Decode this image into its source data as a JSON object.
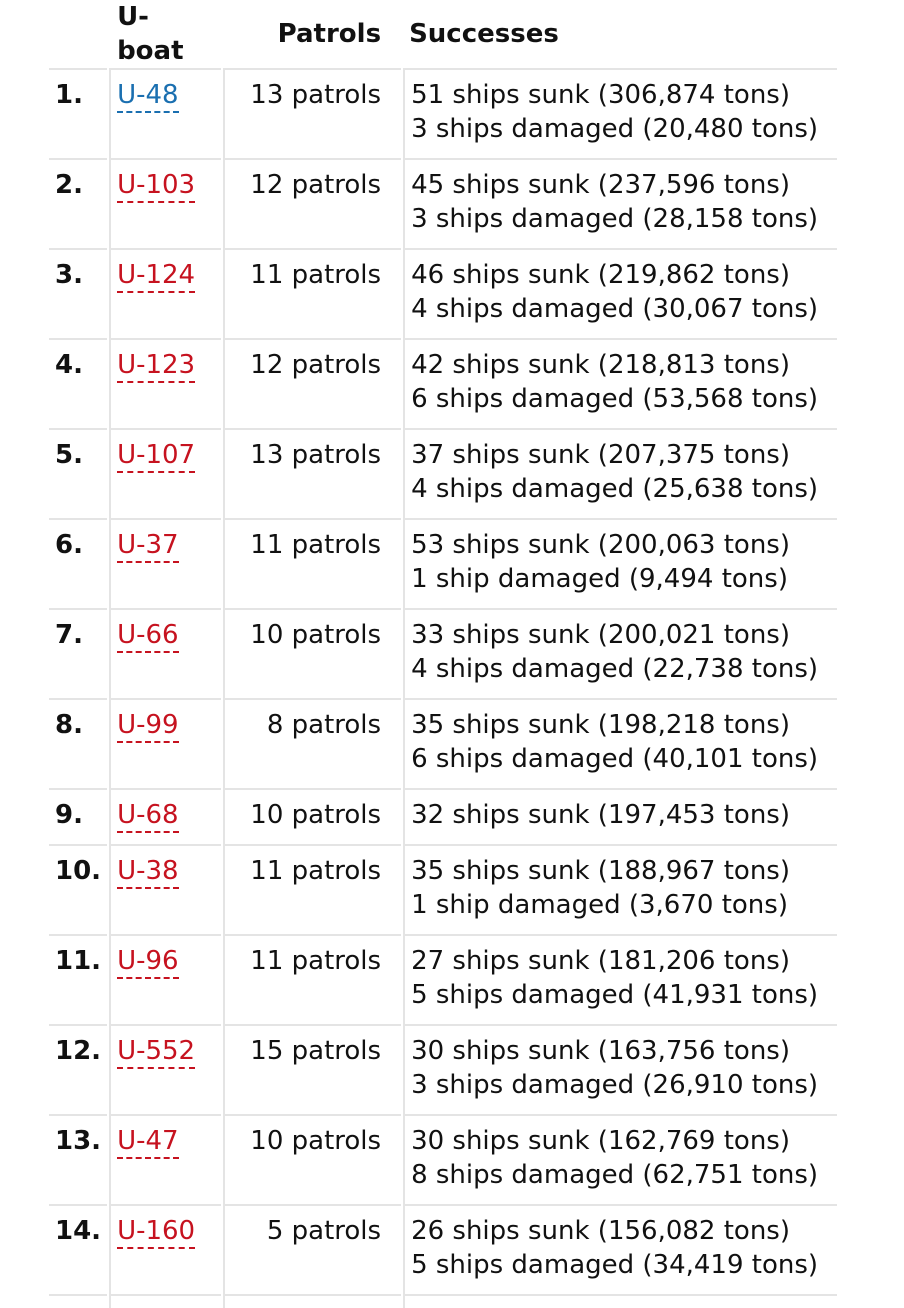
{
  "colors": {
    "link_red": "#c6121f",
    "link_blue": "#1a6fb0",
    "border": "#e4e4e4"
  },
  "headers": {
    "uboat": "U-boat",
    "patrols": "Patrols",
    "successes": "Successes"
  },
  "rows": [
    {
      "rank": "1.",
      "uboat": "U-48",
      "link": "blue",
      "patrols": "13 patrols",
      "sunk": "51 ships sunk (306,874 tons)",
      "damaged": "3 ships damaged (20,480 tons)"
    },
    {
      "rank": "2.",
      "uboat": "U-103",
      "link": "red",
      "patrols": "12 patrols",
      "sunk": "45 ships sunk (237,596 tons)",
      "damaged": "3 ships damaged (28,158 tons)"
    },
    {
      "rank": "3.",
      "uboat": "U-124",
      "link": "red",
      "patrols": "11 patrols",
      "sunk": "46 ships sunk (219,862 tons)",
      "damaged": "4 ships damaged (30,067 tons)"
    },
    {
      "rank": "4.",
      "uboat": "U-123",
      "link": "red",
      "patrols": "12 patrols",
      "sunk": "42 ships sunk (218,813 tons)",
      "damaged": "6 ships damaged (53,568 tons)"
    },
    {
      "rank": "5.",
      "uboat": "U-107",
      "link": "red",
      "patrols": "13 patrols",
      "sunk": "37 ships sunk (207,375 tons)",
      "damaged": "4 ships damaged (25,638 tons)"
    },
    {
      "rank": "6.",
      "uboat": "U-37",
      "link": "red",
      "patrols": "11 patrols",
      "sunk": "53 ships sunk (200,063 tons)",
      "damaged": "1 ship damaged (9,494 tons)"
    },
    {
      "rank": "7.",
      "uboat": "U-66",
      "link": "red",
      "patrols": "10 patrols",
      "sunk": "33 ships sunk (200,021 tons)",
      "damaged": "4 ships damaged (22,738 tons)"
    },
    {
      "rank": "8.",
      "uboat": "U-99",
      "link": "red",
      "patrols": "8 patrols",
      "sunk": "35 ships sunk (198,218 tons)",
      "damaged": "6 ships damaged (40,101 tons)"
    },
    {
      "rank": "9.",
      "uboat": "U-68",
      "link": "red",
      "patrols": "10 patrols",
      "sunk": "32 ships sunk (197,453 tons)",
      "damaged": null
    },
    {
      "rank": "10.",
      "uboat": "U-38",
      "link": "red",
      "patrols": "11 patrols",
      "sunk": "35 ships sunk (188,967 tons)",
      "damaged": "1 ship damaged (3,670 tons)"
    },
    {
      "rank": "11.",
      "uboat": "U-96",
      "link": "red",
      "patrols": "11 patrols",
      "sunk": "27 ships sunk (181,206 tons)",
      "damaged": "5 ships damaged (41,931 tons)"
    },
    {
      "rank": "12.",
      "uboat": "U-552",
      "link": "red",
      "patrols": "15 patrols",
      "sunk": "30 ships sunk (163,756 tons)",
      "damaged": "3 ships damaged (26,910 tons)"
    },
    {
      "rank": "13.",
      "uboat": "U-47",
      "link": "red",
      "patrols": "10 patrols",
      "sunk": "30 ships sunk (162,769 tons)",
      "damaged": "8 ships damaged (62,751 tons)"
    },
    {
      "rank": "14.",
      "uboat": "U-160",
      "link": "red",
      "patrols": "5 patrols",
      "sunk": "26 ships sunk (156,082 tons)",
      "damaged": "5 ships damaged (34,419 tons)"
    }
  ]
}
